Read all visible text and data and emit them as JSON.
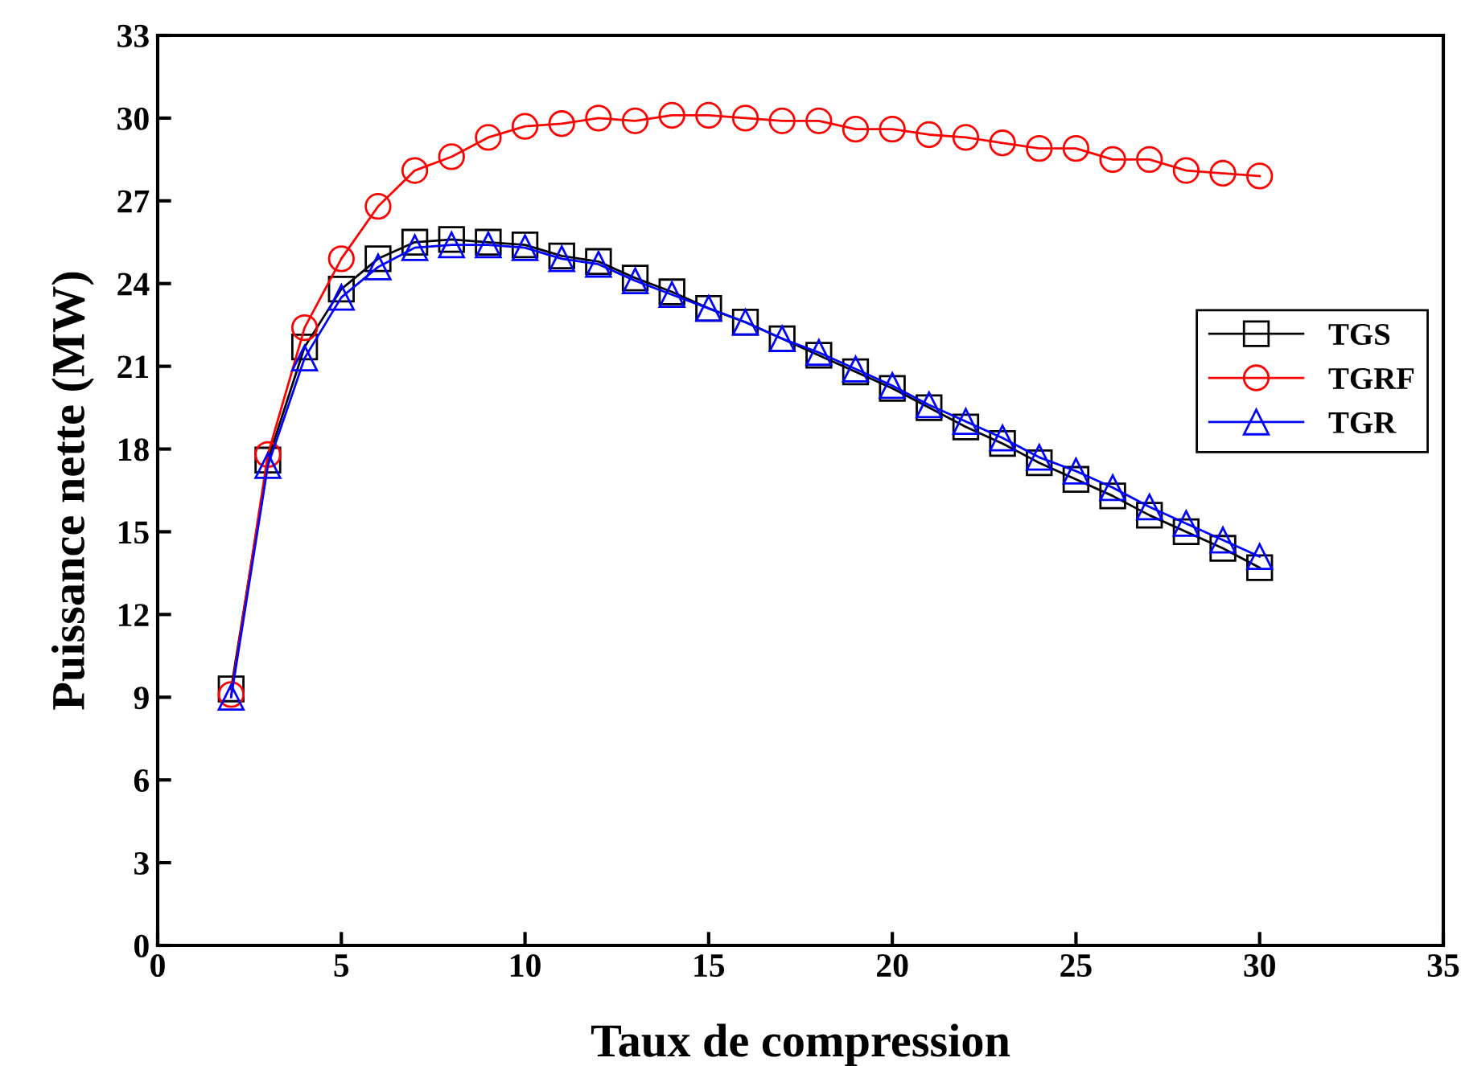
{
  "chart_data": {
    "type": "line",
    "xlabel": "Taux de compression",
    "ylabel": "Puissance nette (MW)",
    "x": [
      2,
      3,
      4,
      5,
      6,
      7,
      8,
      9,
      10,
      11,
      12,
      13,
      14,
      15,
      16,
      17,
      18,
      19,
      20,
      21,
      22,
      23,
      24,
      25,
      26,
      27,
      28,
      29,
      30
    ],
    "series": [
      {
        "name": "TGS",
        "color": "#000000",
        "marker": "square",
        "values": [
          9.3,
          17.6,
          21.7,
          23.8,
          24.9,
          25.5,
          25.6,
          25.5,
          25.4,
          25.0,
          24.8,
          24.2,
          23.7,
          23.1,
          22.6,
          22.0,
          21.4,
          20.8,
          20.2,
          19.5,
          18.8,
          18.2,
          17.5,
          16.9,
          16.3,
          15.6,
          15.0,
          14.4,
          13.7
        ]
      },
      {
        "name": "TGRF",
        "color": "#ff0000",
        "marker": "circle",
        "values": [
          9.1,
          17.8,
          22.4,
          24.9,
          26.8,
          28.1,
          28.6,
          29.3,
          29.7,
          29.8,
          30.0,
          29.9,
          30.1,
          30.1,
          30.0,
          29.9,
          29.9,
          29.6,
          29.6,
          29.4,
          29.3,
          29.1,
          28.9,
          28.9,
          28.5,
          28.5,
          28.1,
          28.0,
          27.9
        ]
      },
      {
        "name": "TGR",
        "color": "#0000ff",
        "marker": "triangle",
        "values": [
          9.0,
          17.4,
          21.3,
          23.5,
          24.6,
          25.3,
          25.4,
          25.4,
          25.3,
          24.9,
          24.7,
          24.1,
          23.6,
          23.1,
          22.6,
          22.0,
          21.5,
          20.9,
          20.3,
          19.6,
          19.0,
          18.4,
          17.7,
          17.2,
          16.6,
          15.9,
          15.3,
          14.7,
          14.1
        ]
      }
    ],
    "xlim": [
      0,
      35
    ],
    "xticks": [
      0,
      5,
      10,
      15,
      20,
      25,
      30,
      35
    ],
    "ylim": [
      0,
      33
    ],
    "yticks": [
      0,
      3,
      6,
      9,
      12,
      15,
      18,
      21,
      24,
      27,
      30,
      33
    ],
    "grid": false,
    "legend": "right",
    "line_style": "solid"
  }
}
